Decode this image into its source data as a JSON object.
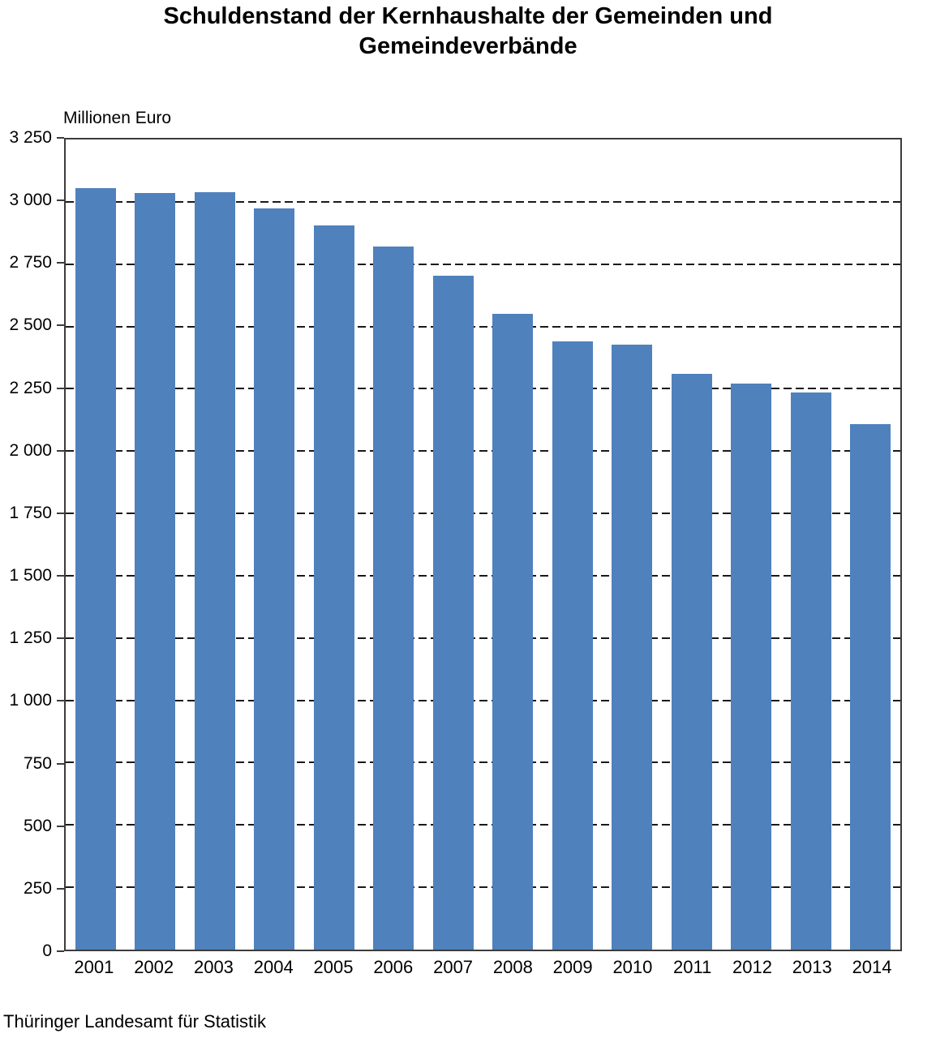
{
  "title": "Schuldenstand der Kernhaushalte der Gemeinden und Gemeindeverbände",
  "source": "Thüringer Landesamt für Statistik",
  "colors": {
    "bar": "#4F81BD",
    "frame": "#3C3C3C",
    "gridline": "#1A1A1A",
    "text": "#000000",
    "background": "#FFFFFF"
  },
  "chart_data": {
    "type": "bar",
    "title": "Schuldenstand der Kernhaushalte der Gemeinden und Gemeindeverbände",
    "xlabel": "",
    "ylabel": "Millionen Euro",
    "categories": [
      "2001",
      "2002",
      "2003",
      "2004",
      "2005",
      "2006",
      "2007",
      "2008",
      "2009",
      "2010",
      "2011",
      "2012",
      "2013",
      "2014"
    ],
    "values": [
      3055,
      3036,
      3038,
      2975,
      2905,
      2821,
      2703,
      2552,
      2440,
      2428,
      2310,
      2272,
      2236,
      2108
    ],
    "ylim": [
      0,
      3250
    ],
    "ytick_step": 250,
    "yticks": [
      {
        "value": 3250,
        "label": "3 250"
      },
      {
        "value": 3000,
        "label": "3 000"
      },
      {
        "value": 2750,
        "label": "2 750"
      },
      {
        "value": 2500,
        "label": "2 500"
      },
      {
        "value": 2250,
        "label": "2 250"
      },
      {
        "value": 2000,
        "label": "2 000"
      },
      {
        "value": 1750,
        "label": "1 750"
      },
      {
        "value": 1500,
        "label": "1 500"
      },
      {
        "value": 1250,
        "label": "1 250"
      },
      {
        "value": 1000,
        "label": "1 000"
      },
      {
        "value": 750,
        "label": "750"
      },
      {
        "value": 500,
        "label": "500"
      },
      {
        "value": 250,
        "label": "250"
      },
      {
        "value": 0,
        "label": "0"
      }
    ],
    "grid": "dashed-horizontal",
    "legend": "none"
  }
}
